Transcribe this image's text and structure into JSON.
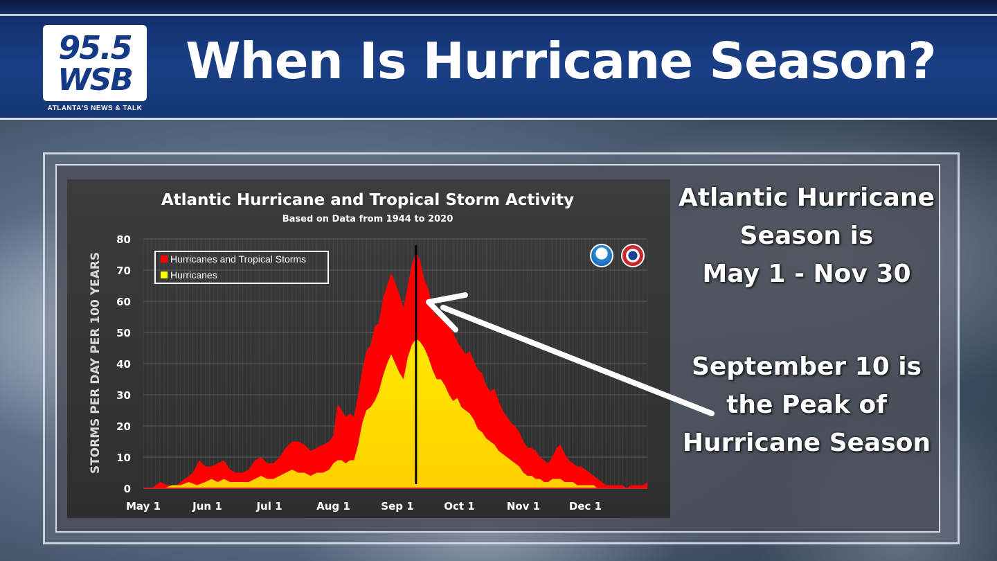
{
  "header": {
    "logo_line1": "95.5",
    "logo_line2": "WSB",
    "logo_tagline": "ATLANTA'S NEWS & TALK",
    "title": "When Is Hurricane Season?"
  },
  "side_panel": {
    "season_lines": [
      "Atlantic Hurricane",
      "Season is",
      "May 1 - Nov 30"
    ],
    "peak_lines": [
      "September 10 is",
      "the Peak of",
      "Hurricane Season"
    ]
  },
  "chart_data": {
    "type": "area",
    "title": "Atlantic Hurricane and Tropical Storm Activity",
    "subtitle": "Based on Data from 1944 to 2020",
    "ylabel": "STORMS PER DAY PER 100 YEARS",
    "xlabel": "",
    "ylim": [
      0,
      80
    ],
    "yticks": [
      0,
      10,
      20,
      30,
      40,
      50,
      60,
      70,
      80
    ],
    "xlim": [
      0,
      244
    ],
    "x_ticks": [
      {
        "label": "May 1",
        "day": 0
      },
      {
        "label": "Jun 1",
        "day": 31
      },
      {
        "label": "Jul 1",
        "day": 61
      },
      {
        "label": "Aug 1",
        "day": 92
      },
      {
        "label": "Sep 1",
        "day": 123
      },
      {
        "label": "Oct 1",
        "day": 153
      },
      {
        "label": "Nov 1",
        "day": 184
      },
      {
        "label": "Dec 1",
        "day": 214
      }
    ],
    "grid": true,
    "legend_position": "top-left",
    "peak_marker_day": 132,
    "series": [
      {
        "name": "Hurricanes and Tropical Storms",
        "color": "#ff0000",
        "points": [
          [
            0,
            0
          ],
          [
            4,
            0
          ],
          [
            8,
            2
          ],
          [
            12,
            1
          ],
          [
            16,
            1
          ],
          [
            20,
            3
          ],
          [
            24,
            5
          ],
          [
            27,
            9
          ],
          [
            30,
            7
          ],
          [
            33,
            7
          ],
          [
            36,
            8
          ],
          [
            39,
            9
          ],
          [
            42,
            6
          ],
          [
            45,
            5
          ],
          [
            48,
            5
          ],
          [
            51,
            6
          ],
          [
            54,
            9
          ],
          [
            57,
            10
          ],
          [
            60,
            8
          ],
          [
            63,
            8
          ],
          [
            66,
            10
          ],
          [
            69,
            13
          ],
          [
            72,
            15
          ],
          [
            75,
            15
          ],
          [
            78,
            14
          ],
          [
            81,
            12
          ],
          [
            84,
            13
          ],
          [
            87,
            14
          ],
          [
            90,
            15
          ],
          [
            92,
            17
          ],
          [
            94,
            27
          ],
          [
            96,
            25
          ],
          [
            98,
            23
          ],
          [
            100,
            24
          ],
          [
            102,
            23
          ],
          [
            104,
            30
          ],
          [
            106,
            38
          ],
          [
            108,
            44
          ],
          [
            110,
            46
          ],
          [
            112,
            52
          ],
          [
            114,
            53
          ],
          [
            116,
            61
          ],
          [
            118,
            65
          ],
          [
            120,
            69
          ],
          [
            122,
            66
          ],
          [
            124,
            62
          ],
          [
            126,
            58
          ],
          [
            128,
            65
          ],
          [
            130,
            72
          ],
          [
            132,
            76
          ],
          [
            134,
            73
          ],
          [
            136,
            67
          ],
          [
            138,
            64
          ],
          [
            140,
            58
          ],
          [
            142,
            55
          ],
          [
            144,
            57
          ],
          [
            146,
            54
          ],
          [
            148,
            52
          ],
          [
            150,
            50
          ],
          [
            152,
            47
          ],
          [
            154,
            45
          ],
          [
            156,
            43
          ],
          [
            158,
            44
          ],
          [
            160,
            41
          ],
          [
            162,
            38
          ],
          [
            164,
            37
          ],
          [
            166,
            33
          ],
          [
            168,
            31
          ],
          [
            170,
            32
          ],
          [
            172,
            28
          ],
          [
            174,
            25
          ],
          [
            176,
            23
          ],
          [
            178,
            21
          ],
          [
            180,
            20
          ],
          [
            182,
            18
          ],
          [
            184,
            15
          ],
          [
            186,
            13
          ],
          [
            188,
            13
          ],
          [
            190,
            12
          ],
          [
            192,
            10
          ],
          [
            194,
            9
          ],
          [
            196,
            8
          ],
          [
            198,
            10
          ],
          [
            200,
            13
          ],
          [
            202,
            14
          ],
          [
            204,
            11
          ],
          [
            206,
            9
          ],
          [
            208,
            8
          ],
          [
            210,
            7
          ],
          [
            212,
            7
          ],
          [
            214,
            6
          ],
          [
            216,
            5
          ],
          [
            218,
            4
          ],
          [
            220,
            3
          ],
          [
            222,
            2
          ],
          [
            224,
            1
          ],
          [
            226,
            1
          ],
          [
            228,
            1
          ],
          [
            230,
            1
          ],
          [
            232,
            1
          ],
          [
            234,
            0
          ],
          [
            236,
            1
          ],
          [
            238,
            1
          ],
          [
            240,
            1
          ],
          [
            242,
            1
          ],
          [
            244,
            2
          ]
        ]
      },
      {
        "name": "Hurricanes",
        "color": "#ffff00",
        "points": [
          [
            0,
            0
          ],
          [
            10,
            0
          ],
          [
            14,
            1
          ],
          [
            18,
            1
          ],
          [
            22,
            2
          ],
          [
            26,
            1
          ],
          [
            30,
            2
          ],
          [
            33,
            3
          ],
          [
            36,
            2
          ],
          [
            39,
            3
          ],
          [
            42,
            2
          ],
          [
            45,
            2
          ],
          [
            48,
            2
          ],
          [
            51,
            2
          ],
          [
            54,
            3
          ],
          [
            57,
            4
          ],
          [
            60,
            3
          ],
          [
            63,
            3
          ],
          [
            66,
            4
          ],
          [
            69,
            5
          ],
          [
            72,
            6
          ],
          [
            75,
            5
          ],
          [
            78,
            5
          ],
          [
            81,
            4
          ],
          [
            84,
            5
          ],
          [
            87,
            5
          ],
          [
            90,
            6
          ],
          [
            92,
            8
          ],
          [
            94,
            9
          ],
          [
            96,
            9
          ],
          [
            98,
            8
          ],
          [
            100,
            9
          ],
          [
            102,
            9
          ],
          [
            104,
            14
          ],
          [
            106,
            21
          ],
          [
            108,
            25
          ],
          [
            110,
            26
          ],
          [
            112,
            28
          ],
          [
            114,
            31
          ],
          [
            116,
            36
          ],
          [
            118,
            40
          ],
          [
            120,
            43
          ],
          [
            122,
            40
          ],
          [
            124,
            37
          ],
          [
            126,
            35
          ],
          [
            128,
            42
          ],
          [
            130,
            46
          ],
          [
            132,
            48
          ],
          [
            134,
            47
          ],
          [
            136,
            45
          ],
          [
            138,
            42
          ],
          [
            140,
            38
          ],
          [
            142,
            35
          ],
          [
            144,
            35
          ],
          [
            146,
            33
          ],
          [
            148,
            30
          ],
          [
            150,
            28
          ],
          [
            152,
            29
          ],
          [
            154,
            26
          ],
          [
            156,
            25
          ],
          [
            158,
            24
          ],
          [
            160,
            22
          ],
          [
            162,
            19
          ],
          [
            164,
            18
          ],
          [
            166,
            16
          ],
          [
            168,
            15
          ],
          [
            170,
            14
          ],
          [
            172,
            12
          ],
          [
            174,
            11
          ],
          [
            176,
            10
          ],
          [
            178,
            9
          ],
          [
            180,
            8
          ],
          [
            182,
            7
          ],
          [
            184,
            5
          ],
          [
            186,
            4
          ],
          [
            188,
            4
          ],
          [
            190,
            3
          ],
          [
            192,
            3
          ],
          [
            194,
            2
          ],
          [
            196,
            2
          ],
          [
            198,
            3
          ],
          [
            200,
            3
          ],
          [
            202,
            3
          ],
          [
            204,
            2
          ],
          [
            206,
            2
          ],
          [
            208,
            2
          ],
          [
            210,
            1
          ],
          [
            212,
            1
          ],
          [
            214,
            1
          ],
          [
            216,
            1
          ],
          [
            218,
            1
          ],
          [
            220,
            0
          ],
          [
            244,
            0
          ]
        ]
      }
    ]
  }
}
